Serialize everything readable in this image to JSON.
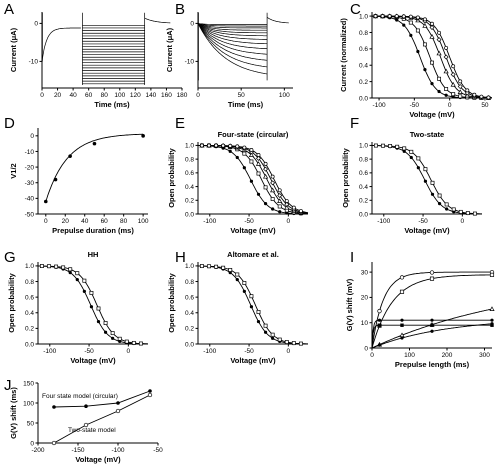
{
  "chart_data": [
    {
      "panel": "A",
      "type": "line",
      "ylabel": "Current (μA)",
      "xlabel": "Time (ms)",
      "xticks": [
        "0",
        "20",
        "40",
        "60",
        "80",
        "100",
        "120",
        "140",
        "160",
        "180"
      ],
      "yticks": [
        "0",
        "-10"
      ],
      "xlim": [
        0,
        180
      ],
      "ylim": [
        -17,
        3
      ],
      "note": "two-pulse current traces",
      "prepulse_decay": {
        "x": [
          0,
          5,
          10,
          20,
          30,
          40,
          50
        ],
        "y": [
          -10,
          -5,
          -3,
          -2,
          -1.6,
          -1.4,
          -1.3
        ]
      },
      "step_levels": [
        -0.6,
        -1.2,
        -1.9,
        -2.6,
        -3.3,
        -4.0,
        -4.7,
        -5.4,
        -6.1,
        -6.8,
        -7.5,
        -8.2,
        -8.9,
        -9.6,
        -10.3,
        -11.0,
        -11.7,
        -12.4,
        -13.1,
        -13.8,
        -14.5,
        -15.2,
        -15.9
      ]
    },
    {
      "panel": "B",
      "type": "line",
      "ylabel": "Current (μA)",
      "xlabel": "Time (ms)",
      "xticks": [
        "0",
        "50",
        "100"
      ],
      "yticks": [
        "0",
        "-10"
      ],
      "xlim": [
        0,
        110
      ],
      "ylim": [
        -17,
        3
      ],
      "final_levels": [
        -0.3,
        -0.7,
        -1.2,
        -1.8,
        -2.5,
        -3.3,
        -4.3,
        -5.5,
        -6.9,
        -8.5,
        -10.3,
        -12.3,
        -14.5
      ]
    },
    {
      "panel": "C",
      "type": "scatter",
      "ylabel": "Current (normalized)",
      "xlabel": "Voltage (mV)",
      "xticks": [
        "-100",
        "-50",
        "0",
        "50"
      ],
      "yticks": [
        "0.0",
        "0.2",
        "0.4",
        "0.6",
        "0.8",
        "1.0"
      ],
      "xlim": [
        -110,
        60
      ],
      "ylim": [
        0,
        1.05
      ],
      "series": [
        {
          "v_half": -42,
          "slope": 11
        },
        {
          "v_half": -28,
          "slope": 11
        },
        {
          "v_half": -13,
          "slope": 11
        },
        {
          "v_half": -5,
          "slope": 11
        },
        {
          "v_half": 0,
          "slope": 11
        }
      ]
    },
    {
      "panel": "D",
      "type": "scatter",
      "ylabel": "V1/2",
      "xlabel": "Prepulse duration (ms)",
      "xticks": [
        "0",
        "20",
        "40",
        "60",
        "80",
        "100"
      ],
      "yticks": [
        "0",
        "-10",
        "-20",
        "-30",
        "-40",
        "-50"
      ],
      "xlim": [
        -8,
        105
      ],
      "ylim": [
        -50,
        5
      ],
      "x": [
        0,
        10,
        25,
        50,
        100
      ],
      "y": [
        -42,
        -28,
        -13,
        -5,
        0
      ]
    },
    {
      "panel": "E",
      "type": "line",
      "title": "Four-state (circular)",
      "ylabel": "Open probability",
      "xlabel": "Voltage (mV)",
      "xticks": [
        "-100",
        "-50",
        "0"
      ],
      "yticks": [
        "0.0",
        "0.2",
        "0.4",
        "0.6",
        "0.8",
        "1.0"
      ],
      "xlim": [
        -115,
        25
      ],
      "ylim": [
        0,
        1.05
      ],
      "series": [
        {
          "v_half": -48,
          "slope": 11
        },
        {
          "v_half": -34,
          "slope": 11
        },
        {
          "v_half": -27,
          "slope": 11
        },
        {
          "v_half": -22,
          "slope": 11
        },
        {
          "v_half": -18,
          "slope": 11
        }
      ]
    },
    {
      "panel": "F",
      "type": "line",
      "title": "Two-state",
      "ylabel": "Open probability",
      "xlabel": "Voltage (mV)",
      "xticks": [
        "-100",
        "-50",
        "0"
      ],
      "yticks": [
        "0.0",
        "0.2",
        "0.4",
        "0.6",
        "0.8",
        "1.0"
      ],
      "xlim": [
        -115,
        25
      ],
      "ylim": [
        0,
        1.05
      ],
      "series": [
        {
          "v_half": -48,
          "slope": 11
        },
        {
          "v_half": -40,
          "slope": 11
        }
      ]
    },
    {
      "panel": "G",
      "type": "line",
      "title": "HH",
      "ylabel": "Open probability",
      "xlabel": "Voltage (mV)",
      "xticks": [
        "-100",
        "-50",
        "0"
      ],
      "yticks": [
        "0.0",
        "0.2",
        "0.4",
        "0.6",
        "0.8",
        "1.0"
      ],
      "xlim": [
        -115,
        25
      ],
      "ylim": [
        0,
        1.05
      ],
      "series": [
        {
          "v_half": -48,
          "slope": 11
        },
        {
          "v_half": -40,
          "slope": 11
        }
      ]
    },
    {
      "panel": "H",
      "type": "line",
      "title": "Altomare et al.",
      "ylabel": "Open probability",
      "xlabel": "Voltage (mV)",
      "xticks": [
        "-100",
        "-50",
        "0"
      ],
      "yticks": [
        "0.0",
        "0.2",
        "0.4",
        "0.6",
        "0.8",
        "1.0"
      ],
      "xlim": [
        -115,
        25
      ],
      "ylim": [
        0,
        1.05
      ],
      "series": [
        {
          "v_half": -48,
          "slope": 11
        },
        {
          "v_half": -42,
          "slope": 11
        }
      ]
    },
    {
      "panel": "I",
      "type": "line",
      "ylabel": "G(V) shift (mV)",
      "xlabel": "Prepulse length (ms)",
      "xticks": [
        "0",
        "100",
        "200",
        "300"
      ],
      "yticks": [
        "0",
        "10",
        "20",
        "30"
      ],
      "xlim": [
        0,
        320
      ],
      "ylim": [
        0,
        34
      ],
      "series": [
        {
          "name": "",
          "tau": 30,
          "amp": 30
        },
        {
          "name": "",
          "tau": 55,
          "amp": 29
        },
        {
          "name": "",
          "tau": 400,
          "amp": 28
        },
        {
          "name": "",
          "tau": 3,
          "amp": 11
        },
        {
          "name": "",
          "tau": 3,
          "amp": 9
        },
        {
          "name": "",
          "tau": 200,
          "amp": 12
        }
      ]
    },
    {
      "panel": "J",
      "type": "line",
      "ylabel": "G(V) shift (ms)",
      "xlabel": "Voltage (mV)",
      "xticks": [
        "-200",
        "-150",
        "-100",
        "-50"
      ],
      "yticks": [
        "0",
        "50",
        "100",
        "150"
      ],
      "xlim": [
        -200,
        -50
      ],
      "ylim": [
        0,
        150
      ],
      "series": [
        {
          "name": "Four state model (circular)",
          "x": [
            -180,
            -140,
            -100,
            -60
          ],
          "y": [
            90,
            92,
            100,
            130
          ]
        },
        {
          "name": "Two-state model",
          "x": [
            -180,
            -140,
            -100,
            -60
          ],
          "y": [
            0,
            45,
            80,
            120
          ]
        }
      ]
    }
  ]
}
